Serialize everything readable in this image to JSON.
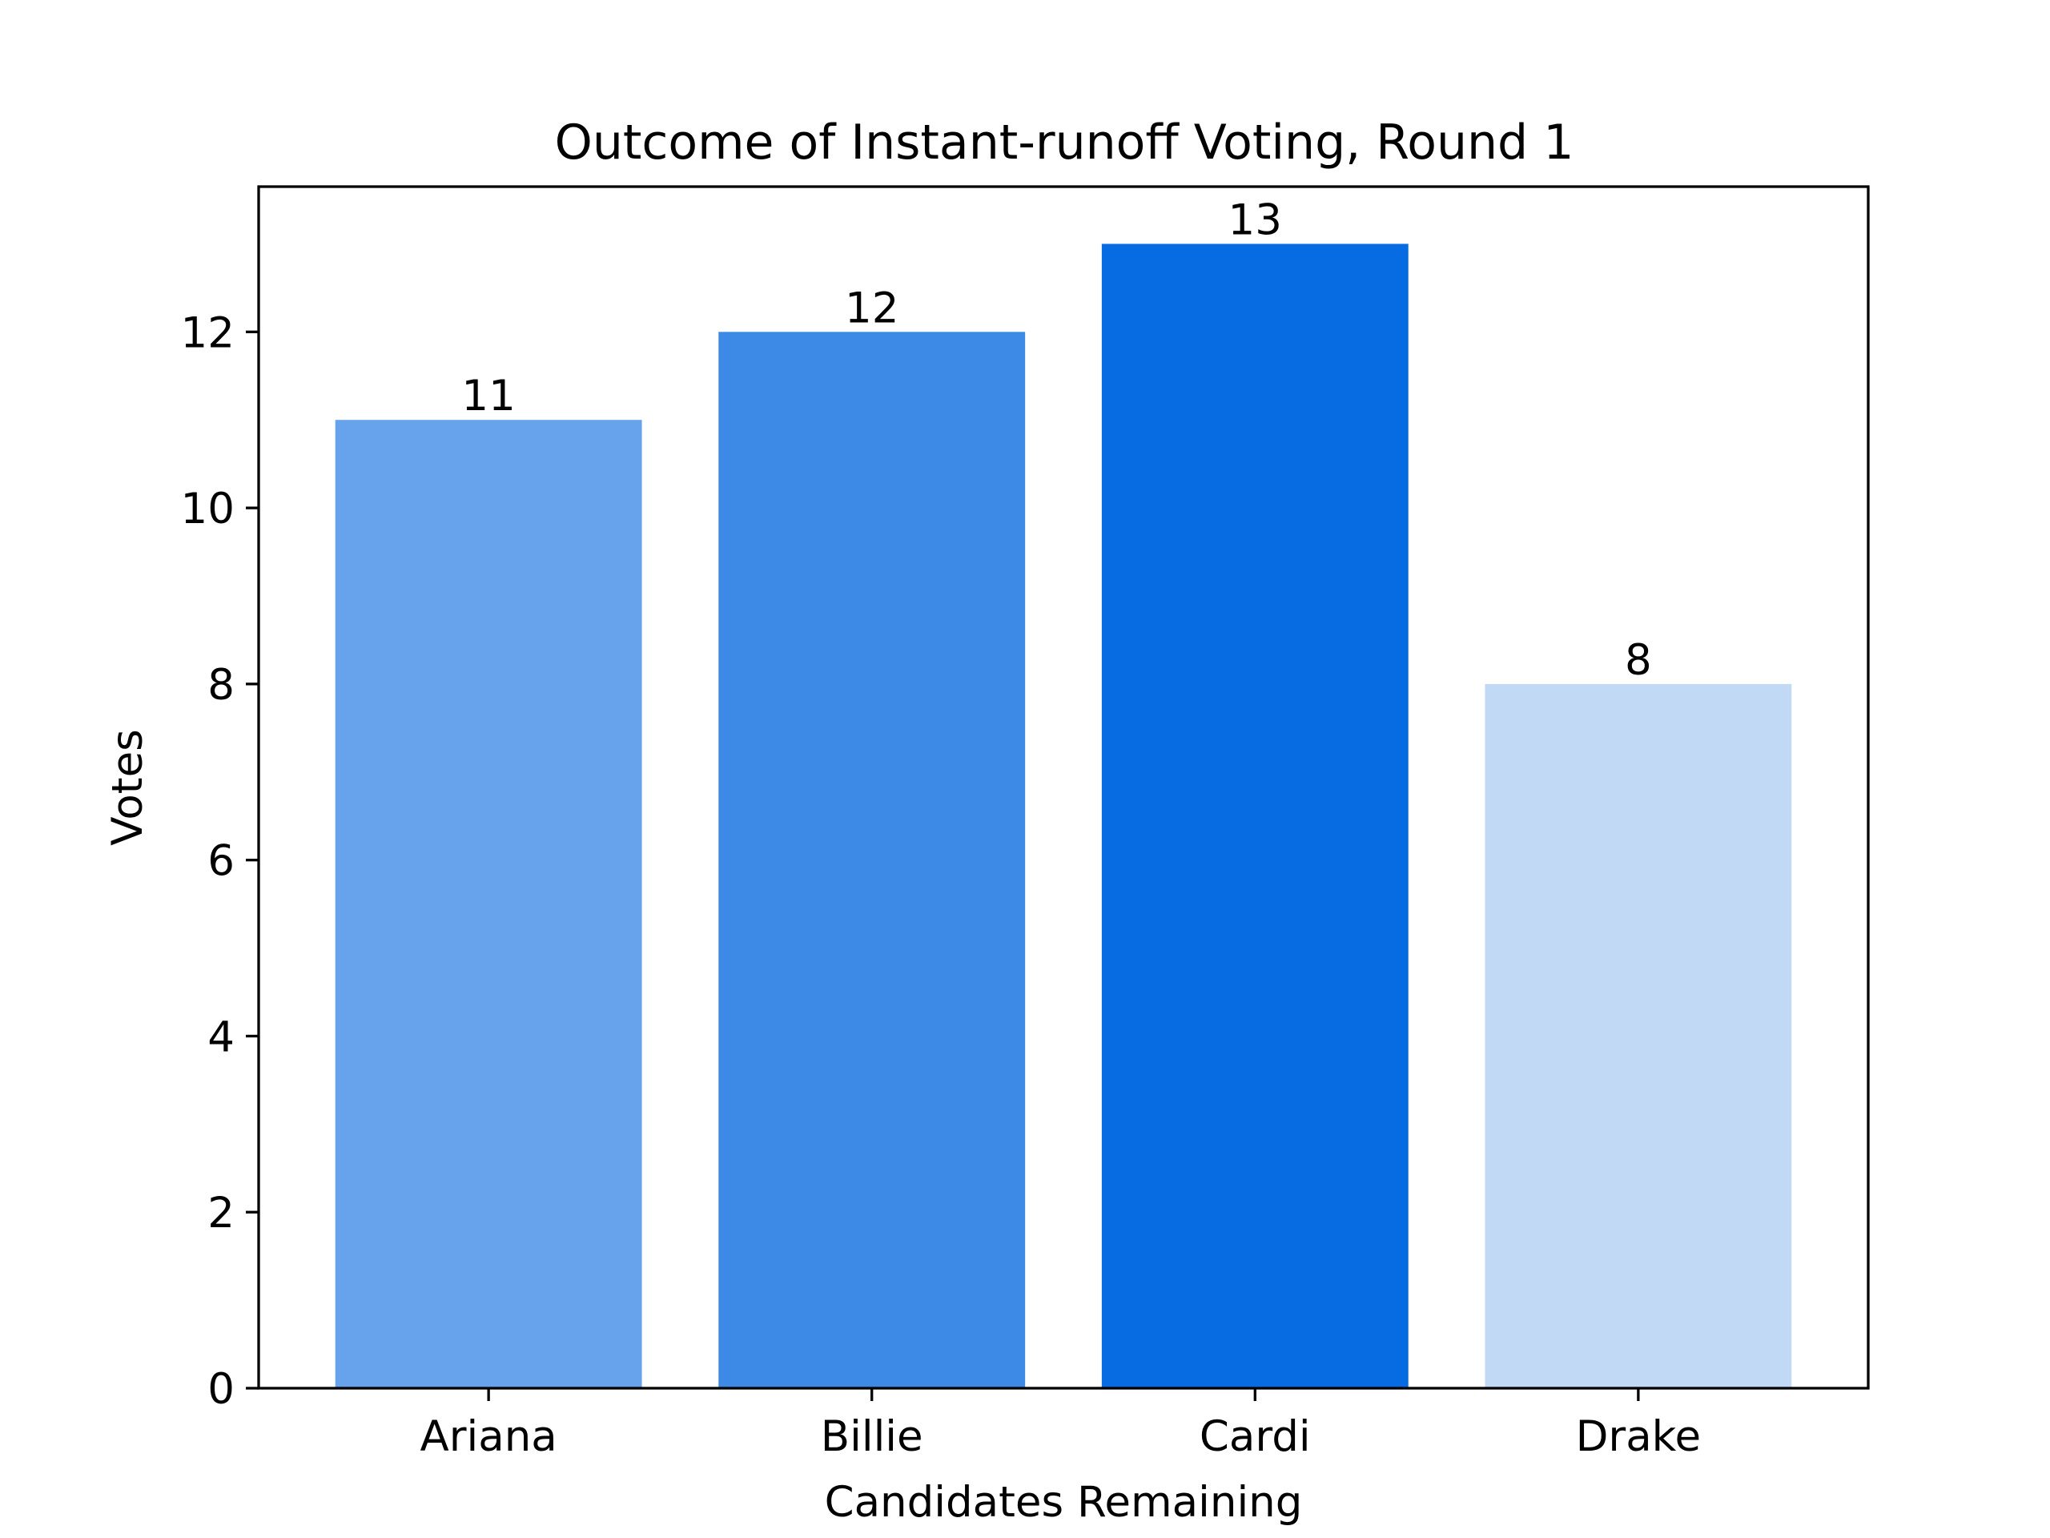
{
  "chart_data": {
    "type": "bar",
    "title": "Outcome of Instant-runoff Voting, Round 1",
    "xlabel": "Candidates Remaining",
    "ylabel": "Votes",
    "categories": [
      "Ariana",
      "Billie",
      "Cardi",
      "Drake"
    ],
    "values": [
      11,
      12,
      13,
      8
    ],
    "value_labels": [
      "11",
      "12",
      "13",
      "8"
    ],
    "bar_colors": [
      "#67a3ec",
      "#3d89e6",
      "#076ce2",
      "#c2d9f6"
    ],
    "ylim": [
      0,
      13.65
    ],
    "yticks": [
      0,
      2,
      4,
      6,
      8,
      10,
      12
    ],
    "grid": false,
    "legend": false
  }
}
